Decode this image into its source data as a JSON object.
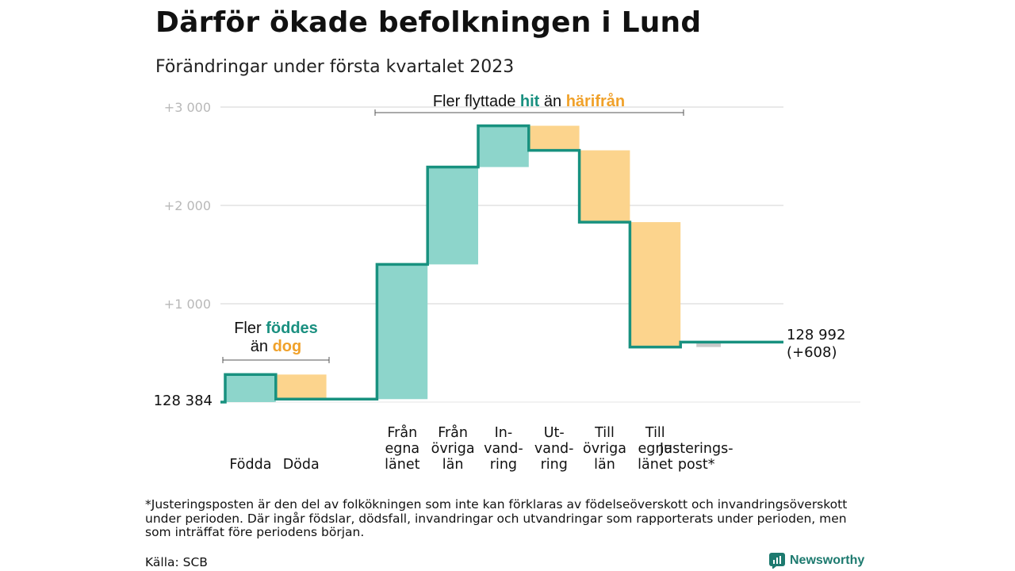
{
  "title": "Därför ökade befolkningen i Lund",
  "subtitle": "Förändringar under första kvartalet 2023",
  "footnote": "*Justeringsposten är den del av folkökningen som inte kan förklaras av födelseöverskott och invandringsöverskott under perioden. Där ingår födslar, dödsfall, invandringar och utvandringar som rapporterats under perioden, men som inträffat före periodens början.",
  "source": "Källa: SCB",
  "brand": "Newsworthy",
  "colors": {
    "increase": "#8dd5cb",
    "decrease": "#fcd48d",
    "line": "#18917f",
    "teal_text": "#1a9080",
    "orange_text": "#f0a12a",
    "adjustment": "#c9c9c9"
  },
  "chart_data": {
    "type": "waterfall",
    "start_value": 128384,
    "end_value": 128992,
    "start_label": "128 384",
    "end_label": "128 992",
    "end_change_label": "(+608)",
    "yaxis": {
      "ticks": [
        1000,
        2000,
        3000
      ],
      "tick_labels": [
        "+1 000",
        "+2 000",
        "+3 000"
      ],
      "range": [
        -40,
        3150
      ],
      "grid": true
    },
    "steps": [
      {
        "label_lines": [
          "Födda"
        ],
        "value": 280,
        "kind": "increase"
      },
      {
        "label_lines": [
          "Döda"
        ],
        "value": -250,
        "kind": "decrease"
      },
      {
        "label_lines": [
          ""
        ],
        "value": 0,
        "kind": "spacer"
      },
      {
        "label_lines": [
          "Från",
          "egna",
          "länet"
        ],
        "value": 1370,
        "kind": "increase"
      },
      {
        "label_lines": [
          "Från",
          "övriga",
          "län"
        ],
        "value": 990,
        "kind": "increase"
      },
      {
        "label_lines": [
          "In-",
          "vand-",
          "ring"
        ],
        "value": 420,
        "kind": "increase"
      },
      {
        "label_lines": [
          "Ut-",
          "vand-",
          "ring"
        ],
        "value": -250,
        "kind": "decrease"
      },
      {
        "label_lines": [
          "Till",
          "övriga",
          "län"
        ],
        "value": -730,
        "kind": "decrease"
      },
      {
        "label_lines": [
          "Till",
          "egna",
          "länet"
        ],
        "value": -1270,
        "kind": "decrease"
      },
      {
        "label_lines": [
          "Justerings-",
          "post*"
        ],
        "value": 50,
        "kind": "adjustment"
      }
    ],
    "annotations": [
      {
        "id": "births",
        "line1_plain": "Fler ",
        "line1_teal": "föddes",
        "line2_plain": "än ",
        "line2_orange": "dog"
      },
      {
        "id": "migration",
        "plain_1": "Fler flyttade ",
        "teal": "hit",
        "plain_2": " än ",
        "orange": "härifrån"
      }
    ]
  }
}
